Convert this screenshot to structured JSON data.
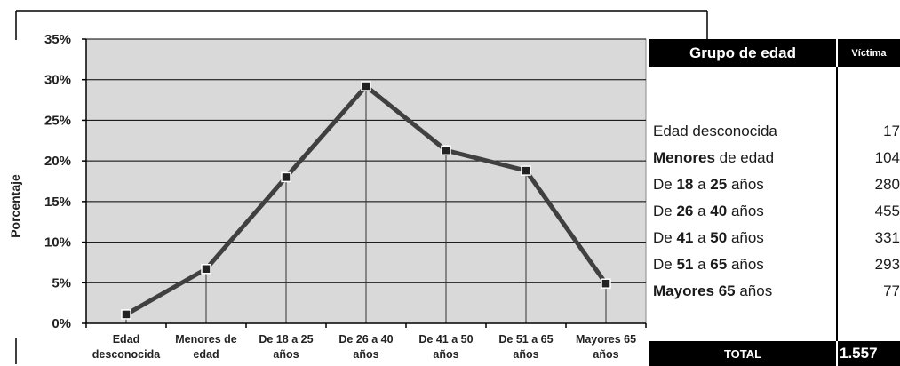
{
  "chart_data": {
    "type": "line",
    "ylabel": "Porcentaje",
    "yunit": "%",
    "ylim": [
      0,
      35
    ],
    "yticks": [
      0,
      5,
      10,
      15,
      20,
      25,
      30,
      35
    ],
    "categories": [
      [
        "Edad",
        "desconocida"
      ],
      [
        "Menores de",
        "edad"
      ],
      [
        "De 18 a 25",
        "años"
      ],
      [
        "De 26 a 40",
        "años"
      ],
      [
        "De 41 a 50",
        "años"
      ],
      [
        "De 51 a 65",
        "años"
      ],
      [
        "Mayores 65",
        "años"
      ]
    ],
    "values": [
      1.1,
      6.7,
      18.0,
      29.2,
      21.3,
      18.8,
      4.9
    ],
    "grid": true,
    "colors": {
      "plot_background": "#d9d9d9",
      "line": "#404040",
      "marker": "#222222",
      "grid": "#000000"
    }
  },
  "table": {
    "header": {
      "group": "Grupo de edad",
      "victims": "Víctima"
    },
    "rows": [
      {
        "parts": [
          [
            "Edad desconocida",
            false
          ]
        ],
        "value": "17"
      },
      {
        "parts": [
          [
            "Menores",
            true
          ],
          [
            " de edad",
            false
          ]
        ],
        "value": "104"
      },
      {
        "parts": [
          [
            "De ",
            false
          ],
          [
            "18",
            true
          ],
          [
            " a ",
            false
          ],
          [
            "25",
            true
          ],
          [
            " años",
            false
          ]
        ],
        "value": "280"
      },
      {
        "parts": [
          [
            "De ",
            false
          ],
          [
            "26",
            true
          ],
          [
            " a ",
            false
          ],
          [
            "40",
            true
          ],
          [
            " años",
            false
          ]
        ],
        "value": "455"
      },
      {
        "parts": [
          [
            "De ",
            false
          ],
          [
            "41",
            true
          ],
          [
            " a ",
            false
          ],
          [
            "50",
            true
          ],
          [
            " años",
            false
          ]
        ],
        "value": "331"
      },
      {
        "parts": [
          [
            "De ",
            false
          ],
          [
            "51",
            true
          ],
          [
            " a ",
            false
          ],
          [
            "65",
            true
          ],
          [
            " años",
            false
          ]
        ],
        "value": "293"
      },
      {
        "parts": [
          [
            "Mayores 65",
            true
          ],
          [
            " años",
            false
          ]
        ],
        "value": "77"
      }
    ],
    "total_label": "TOTAL",
    "total_value": "1.557"
  }
}
